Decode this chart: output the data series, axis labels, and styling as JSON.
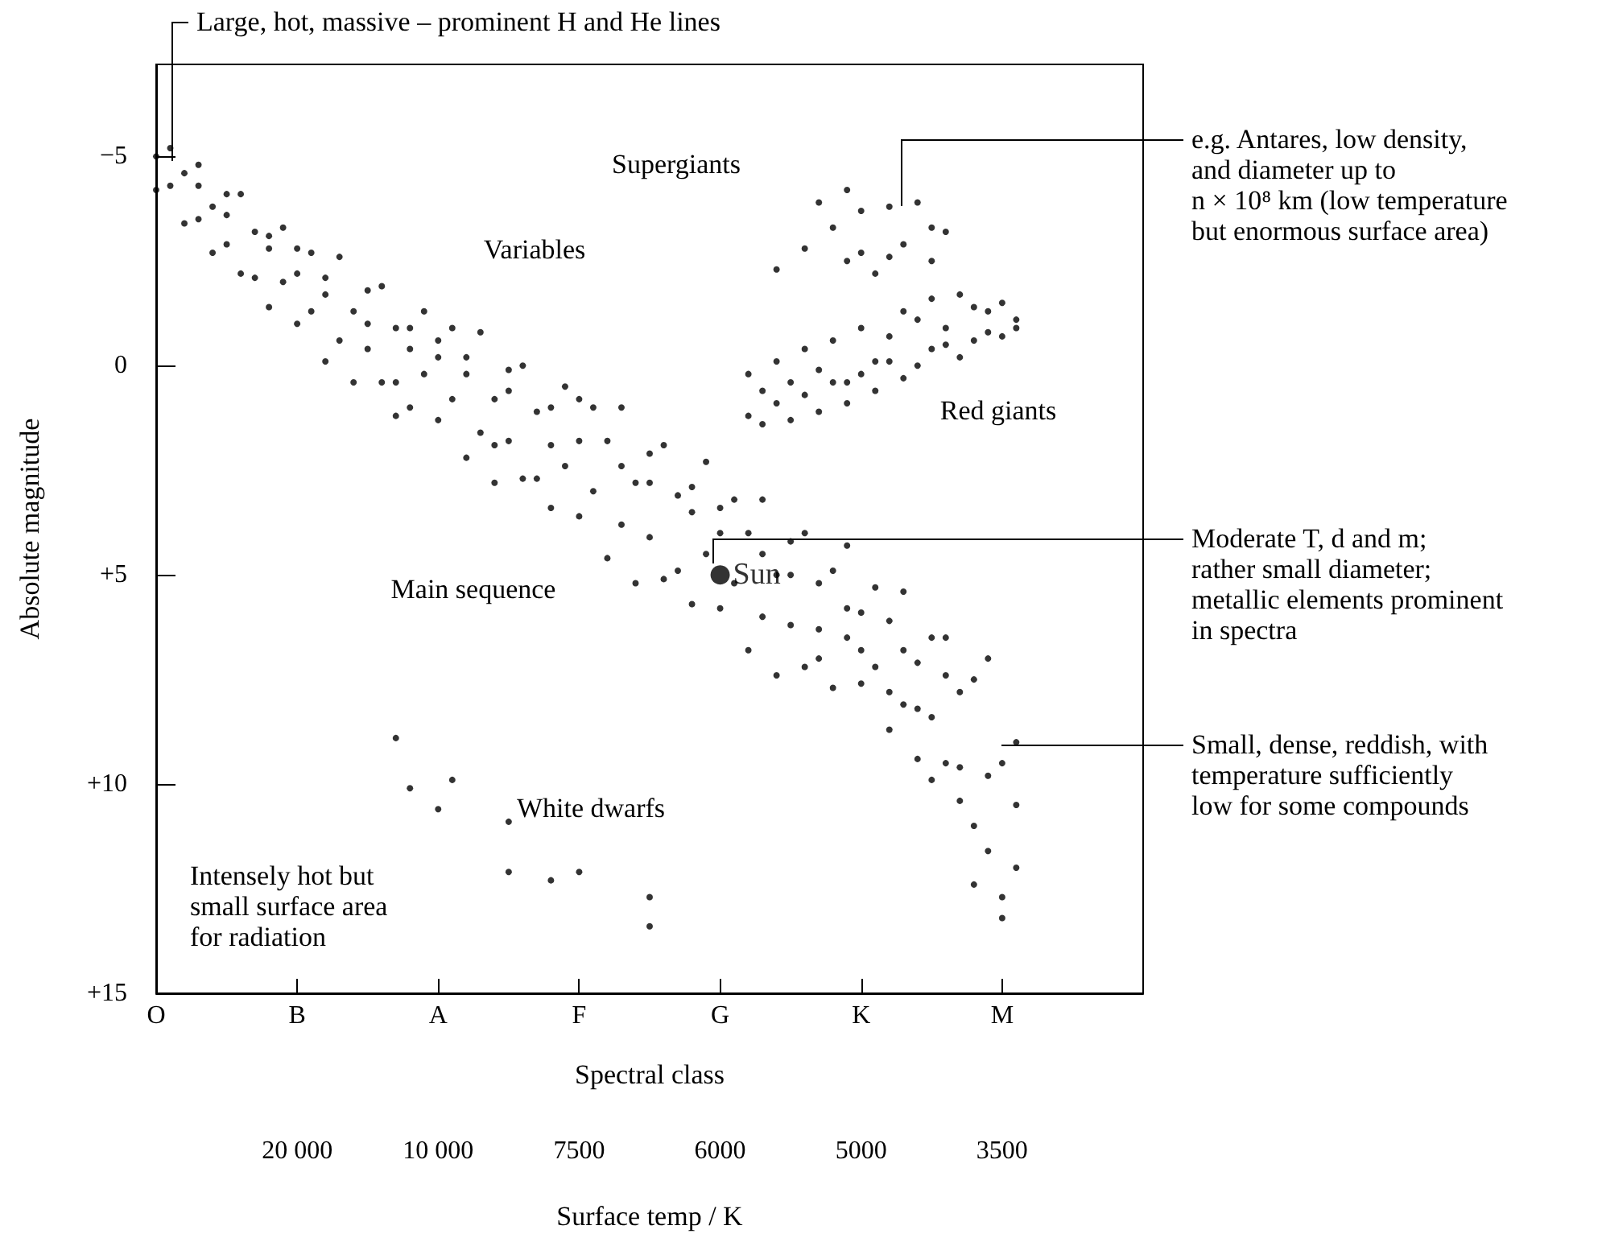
{
  "chart_data": {
    "type": "scatter",
    "xlabel": "Spectral class",
    "ylabel": "Absolute magnitude",
    "x2label": "Surface temp / K",
    "ylim": [
      15,
      -7.2
    ],
    "categories": [
      "O",
      null,
      null,
      null,
      null,
      null,
      null,
      null,
      null,
      null,
      "B",
      null,
      null,
      null,
      null,
      null,
      null,
      null,
      null,
      null,
      "A",
      null,
      null,
      null,
      null,
      null,
      null,
      null,
      null,
      null,
      "F",
      null,
      null,
      null,
      null,
      null,
      null,
      null,
      null,
      null,
      "G",
      null,
      null,
      null,
      null,
      null,
      null,
      null,
      null,
      null,
      "K",
      null,
      null,
      null,
      null,
      null,
      null,
      null,
      null,
      null,
      "M",
      null,
      null,
      null,
      null,
      null,
      null,
      null,
      null,
      null,
      null
    ],
    "yticks": [
      {
        "value": -5,
        "label": "−5"
      },
      0,
      {
        "value": 5,
        "label": "+5"
      },
      {
        "value": 10,
        "label": "+10"
      },
      {
        "value": 15,
        "label": "+15"
      }
    ],
    "marker": "circle",
    "grid": false,
    "series": [
      {
        "color": "#000000",
        "values": [
          -5.0,
          -5.2,
          -4.6,
          -4.8,
          -3.8,
          -4.1,
          -4.1,
          -3.2,
          -3.1,
          -3.3,
          -2.2,
          -2.7,
          -2.1,
          -2.6,
          -1.3,
          -1.8,
          -1.9,
          -0.9,
          -0.9,
          -1.3,
          -0.2,
          -0.9,
          -0.2,
          -0.8,
          0.8,
          0.1,
          0.0,
          1.1,
          1.0,
          0.5,
          1.8,
          1.0,
          1.8,
          1.0,
          2.8,
          2.1,
          1.9,
          3.1,
          2.9,
          2.3,
          4.0,
          3.2,
          4.0,
          3.2,
          5.0,
          4.2,
          4.0,
          5.2,
          4.9,
          4.3,
          5.9,
          5.3,
          6.1,
          5.4,
          7.1,
          6.5,
          6.5,
          7.8,
          7.5,
          7.0,
          9.5,
          9.0,
          null,
          null,
          null,
          null,
          null,
          null,
          null,
          null,
          null
        ]
      },
      {
        "color": "#000000",
        "values": [
          -4.2,
          -4.3,
          -3.4,
          -3.5,
          -2.7,
          -2.9,
          -2.2,
          -2.1,
          -1.4,
          -2.0,
          -1.0,
          -1.3,
          -0.1,
          -0.6,
          0.4,
          -0.4,
          0.4,
          0.4,
          1.0,
          0.2,
          1.3,
          0.8,
          2.2,
          1.6,
          2.8,
          1.8,
          2.7,
          2.7,
          3.4,
          2.4,
          3.6,
          3.0,
          4.6,
          3.8,
          5.2,
          4.1,
          5.1,
          4.9,
          5.7,
          4.5,
          5.8,
          5.2,
          6.8,
          6.0,
          7.4,
          6.2,
          7.2,
          7.0,
          7.7,
          6.5,
          7.6,
          7.2,
          8.7,
          8.1,
          9.4,
          8.4,
          9.5,
          9.6,
          11.0,
          9.8,
          12.7,
          12.0,
          null,
          null,
          null,
          null,
          null,
          null,
          null,
          null,
          null
        ]
      },
      {
        "color": "#000000",
        "values": [
          null,
          null,
          null,
          -4.3,
          null,
          -3.6,
          null,
          null,
          -2.8,
          null,
          -2.8,
          null,
          -1.7,
          null,
          null,
          -1.0,
          null,
          1.2,
          -0.4,
          null,
          -0.6,
          null,
          0.2,
          null,
          1.9,
          0.6,
          null,
          null,
          1.9,
          null,
          0.8,
          null,
          null,
          2.4,
          null,
          2.8,
          null,
          null,
          3.5,
          null,
          3.4,
          null,
          null,
          4.5,
          null,
          5.0,
          null,
          6.3,
          null,
          5.8,
          6.8,
          null,
          7.8,
          6.8,
          8.2,
          9.9,
          7.4,
          10.4,
          12.4,
          11.6,
          13.2,
          10.5,
          null,
          null,
          null,
          null,
          null,
          null,
          null,
          null,
          null
        ]
      },
      {
        "color": "#000000",
        "values": [
          null,
          null,
          null,
          null,
          null,
          null,
          null,
          null,
          null,
          null,
          null,
          null,
          null,
          null,
          null,
          null,
          null,
          null,
          null,
          null,
          null,
          null,
          null,
          null,
          null,
          null,
          null,
          null,
          null,
          null,
          null,
          null,
          null,
          null,
          null,
          null,
          null,
          null,
          null,
          null,
          null,
          null,
          0.2,
          0.6,
          -0.1,
          0.4,
          -0.4,
          0.1,
          -0.6,
          0.4,
          -0.9,
          -0.1,
          -0.7,
          0.3,
          -1.1,
          -0.4,
          -0.9,
          -0.2,
          -1.4,
          -0.8,
          -1.5,
          -1.1,
          null,
          null,
          null,
          null,
          null,
          null,
          null,
          null,
          null
        ]
      },
      {
        "color": "#000000",
        "values": [
          null,
          null,
          null,
          null,
          null,
          null,
          null,
          null,
          null,
          null,
          null,
          null,
          null,
          null,
          null,
          null,
          null,
          null,
          null,
          null,
          null,
          null,
          null,
          null,
          null,
          null,
          null,
          null,
          null,
          null,
          null,
          null,
          null,
          null,
          null,
          null,
          null,
          null,
          null,
          null,
          null,
          null,
          1.2,
          1.4,
          0.9,
          1.3,
          0.7,
          1.1,
          0.4,
          0.9,
          0.2,
          0.6,
          -0.1,
          -1.3,
          0.0,
          -1.6,
          -0.5,
          -1.7,
          -0.6,
          -1.3,
          -0.7,
          -0.9,
          null,
          null,
          null,
          null,
          null,
          null,
          null,
          null,
          null
        ]
      },
      {
        "color": "#000000",
        "values": [
          null,
          null,
          null,
          null,
          null,
          null,
          null,
          null,
          null,
          null,
          null,
          null,
          null,
          null,
          null,
          null,
          null,
          null,
          null,
          null,
          null,
          null,
          null,
          null,
          null,
          null,
          null,
          null,
          null,
          null,
          null,
          null,
          null,
          null,
          null,
          null,
          null,
          null,
          null,
          null,
          null,
          null,
          null,
          null,
          -2.3,
          null,
          -2.8,
          -3.9,
          null,
          -4.2,
          -3.7,
          -2.2,
          -3.8,
          -2.9,
          -3.9,
          -3.3,
          -3.2,
          null,
          null,
          null,
          null,
          null,
          null,
          null,
          null,
          null,
          null,
          null,
          null,
          null,
          null
        ]
      },
      {
        "color": "#000000",
        "values": [
          null,
          null,
          null,
          null,
          null,
          null,
          null,
          null,
          null,
          null,
          null,
          null,
          null,
          null,
          null,
          null,
          null,
          null,
          null,
          null,
          null,
          null,
          null,
          null,
          null,
          null,
          null,
          null,
          null,
          null,
          null,
          null,
          null,
          null,
          null,
          null,
          null,
          null,
          null,
          null,
          null,
          null,
          null,
          null,
          null,
          null,
          null,
          null,
          -3.3,
          -2.5,
          -2.7,
          null,
          -2.6,
          null,
          null,
          -2.5,
          null,
          null,
          null,
          null,
          null,
          null,
          null,
          null,
          null,
          null,
          null,
          null,
          null,
          null,
          null
        ]
      },
      {
        "color": "#000000",
        "values": [
          null,
          null,
          null,
          null,
          null,
          null,
          null,
          null,
          null,
          null,
          null,
          null,
          null,
          null,
          null,
          null,
          null,
          8.9,
          10.1,
          null,
          10.6,
          9.9,
          null,
          null,
          null,
          10.9,
          null,
          null,
          12.3,
          null,
          12.1,
          null,
          null,
          null,
          null,
          12.7,
          null,
          null,
          null,
          null,
          null,
          null,
          null,
          null,
          null,
          null,
          null,
          null,
          null,
          null,
          null,
          null,
          null,
          null,
          null,
          null,
          null,
          null,
          null,
          null,
          null,
          null,
          null,
          null,
          null,
          null,
          null,
          null,
          null,
          null,
          null
        ]
      },
      {
        "color": "#000000",
        "values": [
          null,
          null,
          null,
          null,
          null,
          null,
          null,
          null,
          null,
          null,
          null,
          null,
          null,
          null,
          null,
          null,
          null,
          null,
          null,
          null,
          null,
          null,
          null,
          null,
          null,
          12.1,
          null,
          null,
          null,
          null,
          null,
          null,
          null,
          null,
          null,
          13.4,
          null,
          null,
          null,
          null,
          null,
          null,
          null,
          null,
          null,
          null,
          null,
          null,
          null,
          null,
          null,
          null,
          null,
          null,
          null,
          null,
          null,
          null,
          null,
          null,
          null,
          null,
          null,
          null,
          null,
          null,
          null,
          null,
          null,
          null,
          null
        ]
      },
      {
        "name": "Sun",
        "color": "#000000",
        "values": [
          null,
          null,
          null,
          null,
          null,
          null,
          null,
          null,
          null,
          null,
          null,
          null,
          null,
          null,
          null,
          null,
          null,
          null,
          null,
          null,
          null,
          null,
          null,
          null,
          null,
          null,
          null,
          null,
          null,
          null,
          null,
          null,
          null,
          null,
          null,
          null,
          null,
          null,
          null,
          null,
          5.0,
          null,
          null,
          null,
          null,
          null,
          null,
          null,
          null,
          null,
          null,
          null,
          null,
          null,
          null,
          null,
          null,
          null,
          null,
          null,
          null,
          null,
          null,
          null,
          null,
          null,
          null,
          null,
          null,
          null,
          null
        ]
      }
    ],
    "annotations": [
      "Supergiants",
      "Variables",
      "Red giants",
      "Main sequence",
      "White dwarfs",
      "Intensely hot but\nsmall surface area\nfor radiation",
      "Large, hot, massive – prominent H and He lines",
      "e.g. Antares, low density,\nand diameter up to\nn × 10⁸ km (low temperature\nbut enormous surface area)",
      "Moderate T, d and m;\nrather small diameter;\nmetallic elements prominent\nin spectra",
      "Small, dense, reddish, with\ntemperature sufficiently\nlow for some compounds",
      "20 000",
      "10 000",
      "7500",
      "6000",
      "5000",
      "3500"
    ]
  }
}
